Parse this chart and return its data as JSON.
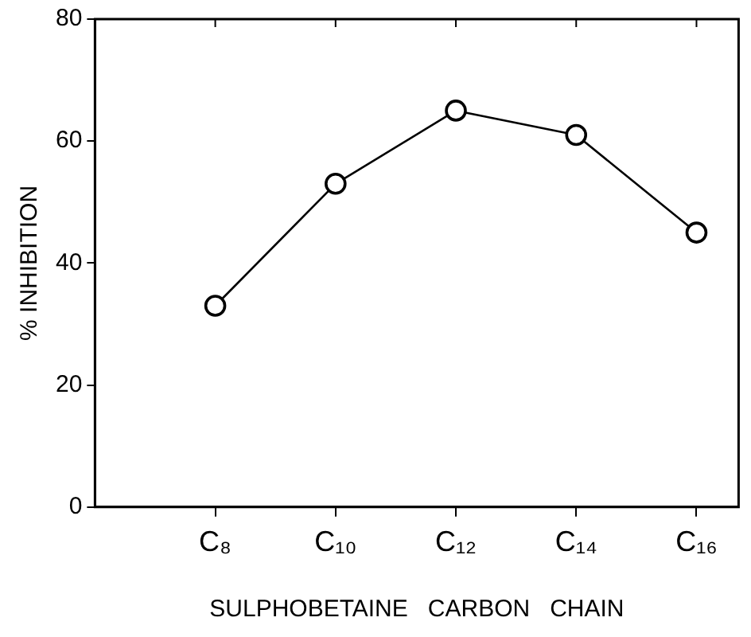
{
  "chart_data": {
    "type": "line",
    "xlabel": "SULPHOBETAINE   CARBON   CHAIN",
    "ylabel": "% INHIBITION",
    "categories": [
      "C₈",
      "C₁₀",
      "C₁₂",
      "C₁₄",
      "C₁₆"
    ],
    "series": [
      {
        "color": "#000000",
        "values": [
          33,
          53,
          65,
          61,
          45
        ]
      }
    ],
    "ylim": [
      0,
      80
    ],
    "yticks": [
      0,
      20,
      40,
      60,
      80
    ],
    "grid": false,
    "legend": false,
    "marker": "circle",
    "line_style": "solid"
  }
}
